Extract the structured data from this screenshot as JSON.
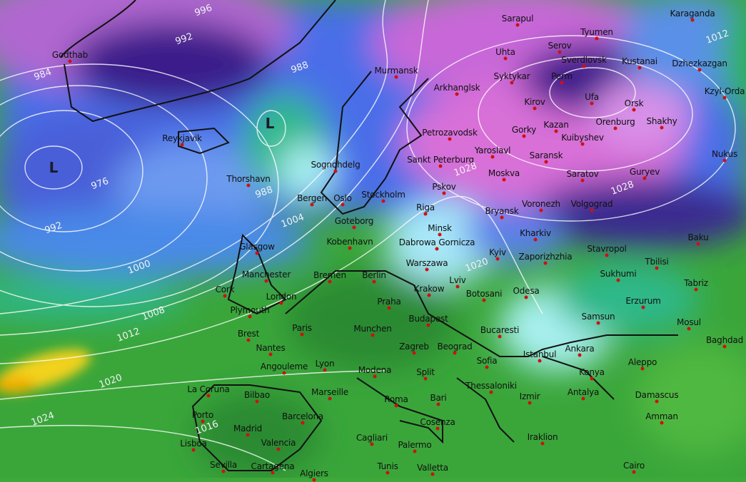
{
  "map": {
    "type": "weather-forecast-map",
    "layers": [
      "850hPa temperature (filled)",
      "surface pressure isobars (white)"
    ],
    "colors": {
      "very_cold": "#c06fd8",
      "cold_purple": "#3a1f8a",
      "blue": "#4a6ee8",
      "light_blue": "#8fd8f0",
      "teal": "#2fb88a",
      "green": "#3aa83a",
      "dark_green": "#1f7a2a",
      "warm_yellow": "#f2d21a",
      "isobar": "#ffffff",
      "city_dot": "#d01010"
    },
    "lows": [
      "L",
      "L"
    ],
    "isobar_labels": [
      "996",
      "992",
      "984",
      "988",
      "976",
      "992",
      "988",
      "1000",
      "1004",
      "1008",
      "1012",
      "1016",
      "1020",
      "1024",
      "1028",
      "1020",
      "1028",
      "1012"
    ],
    "cities": [
      "Godthab",
      "Reykjavik",
      "Thorshavn",
      "Sognohdelg",
      "Bergen",
      "Oslo",
      "Stockholm",
      "Goteborg",
      "Kobenhavn",
      "Murmansk",
      "Arkhanglsk",
      "Sarapul",
      "Uhta",
      "Syktykar",
      "Serov",
      "Tyumen",
      "Sverdlovsk",
      "Kustanai",
      "Karaganda",
      "Dzhezkazgan",
      "Kzyl-Orda",
      "Perm",
      "Ufa",
      "Orsk",
      "Kirov",
      "Orenburg",
      "Shakhy",
      "Kazan",
      "Gorky",
      "Kuibyshev",
      "Petrozavodsk",
      "Yaroslavl",
      "Saransk",
      "Sankt Peterburg",
      "Moskva",
      "Saratov",
      "Guryev",
      "Nukus",
      "Pskov",
      "Riga",
      "Voronezh",
      "Volgograd",
      "Bryansk",
      "Minsk",
      "Kharkiv",
      "Baku",
      "Dabrowa Gornicza",
      "Glasgow",
      "Kyiv",
      "Zaporizhzhia",
      "Stavropol",
      "Tbilisi",
      "Manchester",
      "Bremen",
      "Berlin",
      "Warszawa",
      "Lviv",
      "Sukhumi",
      "Tabriz",
      "Cork",
      "London",
      "Krakow",
      "Botosani",
      "Odesa",
      "Erzurum",
      "Plymouth",
      "Praha",
      "Samsun",
      "Budapest",
      "Mosul",
      "Brest",
      "Paris",
      "Munchen",
      "Bucaresti",
      "Baghdad",
      "Nantes",
      "Zagreb",
      "Beograd",
      "Istanbul",
      "Ankara",
      "Angouleme",
      "Lyon",
      "Modena",
      "Split",
      "Sofia",
      "Konya",
      "Aleppo",
      "La Coruna",
      "Bilbao",
      "Marseille",
      "Roma",
      "Bari",
      "Thessaloniki",
      "Izmir",
      "Antalya",
      "Damascus",
      "Porto",
      "Barcelona",
      "Cosenza",
      "Amman",
      "Madrid",
      "Valencia",
      "Cagliari",
      "Palermo",
      "Iraklion",
      "Lisboa",
      "Sevilla",
      "Cartagena",
      "Algiers",
      "Tunis",
      "Valletta",
      "Cairo"
    ]
  }
}
